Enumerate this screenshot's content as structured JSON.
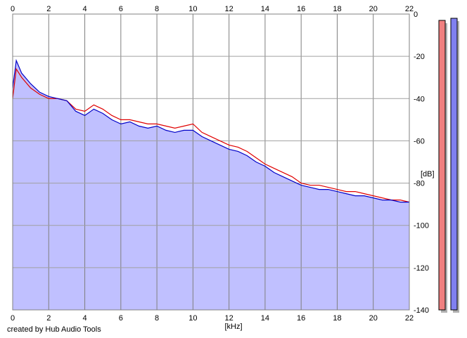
{
  "chart_data": {
    "type": "line",
    "title": "",
    "xlabel": "[kHz]",
    "ylabel": "[dB]",
    "xlim": [
      0,
      22
    ],
    "ylim": [
      -140,
      0
    ],
    "x_ticks": [
      0,
      2,
      4,
      6,
      8,
      10,
      12,
      14,
      16,
      18,
      20,
      22
    ],
    "y_ticks": [
      0,
      -20,
      -40,
      -60,
      -80,
      -100,
      -120,
      -140
    ],
    "grid": true,
    "series": [
      {
        "color": "#e00000",
        "x": [
          0,
          0.2,
          0.5,
          1,
          1.5,
          2,
          2.5,
          3,
          3.5,
          4,
          4.5,
          5,
          5.5,
          6,
          6.5,
          7,
          7.5,
          8,
          8.5,
          9,
          9.5,
          10,
          10.5,
          11,
          11.5,
          12,
          12.5,
          13,
          13.5,
          14,
          14.5,
          15,
          15.5,
          16,
          16.5,
          17,
          17.5,
          18,
          18.5,
          19,
          19.5,
          20,
          20.5,
          21,
          21.5,
          22
        ],
        "values": [
          -40,
          -26,
          -30,
          -35,
          -38,
          -40,
          -40,
          -41,
          -45,
          -46,
          -43,
          -45,
          -48,
          -50,
          -50,
          -51,
          -52,
          -52,
          -53,
          -54,
          -53,
          -52,
          -56,
          -58,
          -60,
          -62,
          -63,
          -65,
          -68,
          -71,
          -73,
          -75,
          -77,
          -80,
          -81,
          -81,
          -82,
          -83,
          -84,
          -84,
          -85,
          -86,
          -87,
          -88,
          -88,
          -89
        ]
      },
      {
        "color": "#0000c8",
        "x": [
          0,
          0.2,
          0.5,
          1,
          1.5,
          2,
          2.5,
          3,
          3.5,
          4,
          4.5,
          5,
          5.5,
          6,
          6.5,
          7,
          7.5,
          8,
          8.5,
          9,
          9.5,
          10,
          10.5,
          11,
          11.5,
          12,
          12.5,
          13,
          13.5,
          14,
          14.5,
          15,
          15.5,
          16,
          16.5,
          17,
          17.5,
          18,
          18.5,
          19,
          19.5,
          20,
          20.5,
          21,
          21.5,
          22
        ],
        "values": [
          -35,
          -22,
          -28,
          -33,
          -37,
          -39,
          -40,
          -41,
          -46,
          -48,
          -45,
          -47,
          -50,
          -52,
          -51,
          -53,
          -54,
          -53,
          -55,
          -56,
          -55,
          -55,
          -58,
          -60,
          -62,
          -64,
          -65,
          -67,
          -70,
          -72,
          -75,
          -77,
          -79,
          -81,
          -82,
          -83,
          -83,
          -84,
          -85,
          -86,
          -86,
          -87,
          -88,
          -88,
          -89,
          -89
        ]
      }
    ],
    "fill_color": "#c0c0ff",
    "meters": [
      {
        "color": "#f08080",
        "level_db": -3
      },
      {
        "color": "#8080f0",
        "level_db": -2
      }
    ]
  },
  "footer": {
    "credit": "created by Hub Audio Tools"
  }
}
